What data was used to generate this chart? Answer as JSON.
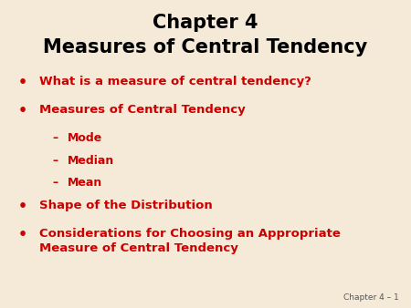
{
  "title_line1": "Chapter 4",
  "title_line2": "Measures of Central Tendency",
  "title_color": "#000000",
  "background_color": "#f5ead8",
  "bullet_color": "#cc0000",
  "bullet_items": [
    {
      "text": "What is a measure of central tendency?",
      "level": 0
    },
    {
      "text": "Measures of Central Tendency",
      "level": 0
    },
    {
      "text": "Mode",
      "level": 1
    },
    {
      "text": "Median",
      "level": 1
    },
    {
      "text": "Mean",
      "level": 1
    },
    {
      "text": "Shape of the Distribution",
      "level": 0
    },
    {
      "text": "Considerations for Choosing an Appropriate\nMeasure of Central Tendency",
      "level": 0
    }
  ],
  "footer_text": "Chapter 4 – 1",
  "footer_color": "#555555",
  "bullet_fontsize": 9.5,
  "sub_fontsize": 9.0,
  "title_fontsize1": 15,
  "title_fontsize2": 15
}
